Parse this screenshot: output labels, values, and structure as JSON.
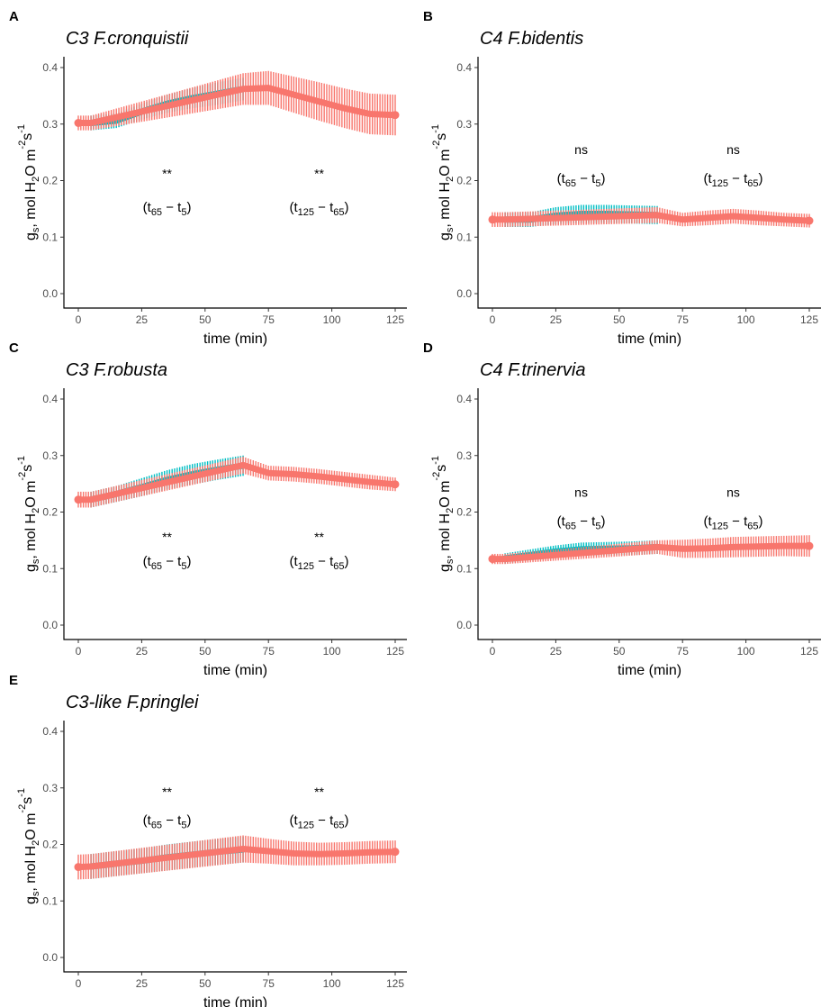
{
  "chart_data": [
    {
      "type": "line",
      "panel_label": "A",
      "title": "C3 F.cronquistii",
      "xlabel": "time (min)",
      "ylabel": "g_s, mol H2O m^-2 s^-1",
      "xlim": [
        0,
        125
      ],
      "ylim": [
        0,
        0.4
      ],
      "xticks": [
        "0",
        "25",
        "50",
        "75",
        "100",
        "125"
      ],
      "yticks": [
        "0.0",
        "0.1",
        "0.2",
        "0.3",
        "0.4"
      ],
      "colors": {
        "light": "#00BFC4",
        "dark": "#F8766D"
      },
      "series": [
        {
          "condition": "light",
          "x": [
            5,
            15,
            25,
            35,
            45,
            55,
            65
          ],
          "y": [
            0.302,
            0.306,
            0.322,
            0.336,
            0.346,
            0.354,
            0.362
          ],
          "err": [
            0.013,
            0.013,
            0.014,
            0.016,
            0.018,
            0.02,
            0.02
          ]
        },
        {
          "condition": "dark",
          "x": [
            0,
            5,
            65,
            75,
            85,
            95,
            105,
            115,
            125
          ],
          "y": [
            0.302,
            0.302,
            0.362,
            0.364,
            0.352,
            0.34,
            0.328,
            0.318,
            0.316
          ],
          "err": [
            0.013,
            0.013,
            0.028,
            0.03,
            0.032,
            0.034,
            0.035,
            0.036,
            0.036
          ]
        }
      ],
      "annotations": [
        {
          "sig": "**",
          "a": "65",
          "b": "5",
          "x": 35
        },
        {
          "sig": "**",
          "a": "125",
          "b": "65",
          "x": 95
        }
      ],
      "ann_y": {
        "sig": 0.205,
        "paren": 0.145
      }
    },
    {
      "type": "line",
      "panel_label": "B",
      "title": "C4 F.bidentis",
      "xlabel": "time (min)",
      "ylabel": "g_s, mol H2O m^-2 s^-1",
      "xlim": [
        0,
        125
      ],
      "ylim": [
        0,
        0.4
      ],
      "xticks": [
        "0",
        "25",
        "50",
        "75",
        "100",
        "125"
      ],
      "yticks": [
        "0.0",
        "0.1",
        "0.2",
        "0.3",
        "0.4"
      ],
      "colors": {
        "light": "#00BFC4",
        "dark": "#F8766D"
      },
      "series": [
        {
          "condition": "light",
          "x": [
            5,
            15,
            25,
            35,
            45,
            55,
            65
          ],
          "y": [
            0.131,
            0.131,
            0.138,
            0.141,
            0.141,
            0.14,
            0.139
          ],
          "err": [
            0.013,
            0.013,
            0.015,
            0.016,
            0.016,
            0.016,
            0.016
          ]
        },
        {
          "condition": "dark",
          "x": [
            0,
            5,
            65,
            75,
            85,
            95,
            105,
            115,
            125
          ],
          "y": [
            0.131,
            0.131,
            0.139,
            0.131,
            0.134,
            0.137,
            0.134,
            0.131,
            0.129
          ],
          "err": [
            0.013,
            0.013,
            0.014,
            0.012,
            0.013,
            0.013,
            0.013,
            0.012,
            0.012
          ]
        }
      ],
      "annotations": [
        {
          "sig": "ns",
          "a": "65",
          "b": "5",
          "x": 35
        },
        {
          "sig": "ns",
          "a": "125",
          "b": "65",
          "x": 95
        }
      ],
      "ann_y": {
        "sig": 0.247,
        "paren": 0.196
      }
    },
    {
      "type": "line",
      "panel_label": "C",
      "title": "C3 F.robusta",
      "xlabel": "time (min)",
      "ylabel": "g_s, mol H2O m^-2 s^-1",
      "xlim": [
        0,
        125
      ],
      "ylim": [
        0,
        0.4
      ],
      "xticks": [
        "0",
        "25",
        "50",
        "75",
        "100",
        "125"
      ],
      "yticks": [
        "0.0",
        "0.1",
        "0.2",
        "0.3",
        "0.4"
      ],
      "colors": {
        "light": "#00BFC4",
        "dark": "#F8766D"
      },
      "series": [
        {
          "condition": "light",
          "x": [
            5,
            15,
            25,
            35,
            45,
            55,
            65
          ],
          "y": [
            0.222,
            0.232,
            0.244,
            0.257,
            0.267,
            0.275,
            0.282
          ],
          "err": [
            0.014,
            0.014,
            0.016,
            0.017,
            0.018,
            0.018,
            0.018
          ]
        },
        {
          "condition": "dark",
          "x": [
            0,
            5,
            65,
            75,
            85,
            95,
            105,
            115,
            125
          ],
          "y": [
            0.222,
            0.222,
            0.283,
            0.269,
            0.267,
            0.263,
            0.258,
            0.253,
            0.249
          ],
          "err": [
            0.014,
            0.014,
            0.015,
            0.013,
            0.013,
            0.013,
            0.013,
            0.013,
            0.012
          ]
        }
      ],
      "annotations": [
        {
          "sig": "**",
          "a": "65",
          "b": "5",
          "x": 35
        },
        {
          "sig": "**",
          "a": "125",
          "b": "65",
          "x": 95
        }
      ],
      "ann_y": {
        "sig": 0.148,
        "paren": 0.105
      }
    },
    {
      "type": "line",
      "panel_label": "D",
      "title": "C4 F.trinervia",
      "xlabel": "time (min)",
      "ylabel": "g_s, mol H2O m^-2 s^-1",
      "xlim": [
        0,
        125
      ],
      "ylim": [
        0,
        0.4
      ],
      "xticks": [
        "0",
        "25",
        "50",
        "75",
        "100",
        "125"
      ],
      "yticks": [
        "0.0",
        "0.1",
        "0.2",
        "0.3",
        "0.4"
      ],
      "colors": {
        "light": "#00BFC4",
        "dark": "#F8766D"
      },
      "series": [
        {
          "condition": "light",
          "x": [
            5,
            15,
            25,
            35,
            45,
            55,
            65
          ],
          "y": [
            0.118,
            0.124,
            0.13,
            0.134,
            0.135,
            0.136,
            0.138
          ],
          "err": [
            0.009,
            0.01,
            0.011,
            0.012,
            0.012,
            0.012,
            0.012
          ]
        },
        {
          "condition": "dark",
          "x": [
            0,
            5,
            65,
            75,
            85,
            95,
            105,
            115,
            125
          ],
          "y": [
            0.117,
            0.117,
            0.138,
            0.135,
            0.136,
            0.138,
            0.139,
            0.14,
            0.14
          ],
          "err": [
            0.009,
            0.009,
            0.012,
            0.016,
            0.017,
            0.018,
            0.018,
            0.018,
            0.019
          ]
        }
      ],
      "annotations": [
        {
          "sig": "ns",
          "a": "65",
          "b": "5",
          "x": 35
        },
        {
          "sig": "ns",
          "a": "125",
          "b": "65",
          "x": 95
        }
      ],
      "ann_y": {
        "sig": 0.227,
        "paren": 0.176
      }
    },
    {
      "type": "line",
      "panel_label": "E",
      "title": "C3-like F.pringlei",
      "xlabel": "time (min)",
      "ylabel": "g_s, mol H2O m^-2 s^-1",
      "xlim": [
        0,
        125
      ],
      "ylim": [
        0,
        0.4
      ],
      "xticks": [
        "0",
        "25",
        "50",
        "75",
        "100",
        "125"
      ],
      "yticks": [
        "0.0",
        "0.1",
        "0.2",
        "0.3",
        "0.4"
      ],
      "colors": {
        "light": "#00BFC4",
        "dark": "#F8766D"
      },
      "series": [
        {
          "condition": "light",
          "x": [
            5,
            15,
            25,
            35,
            45,
            55,
            65
          ],
          "y": [
            0.161,
            0.166,
            0.171,
            0.177,
            0.182,
            0.187,
            0.191
          ],
          "err": [
            0.022,
            0.022,
            0.022,
            0.023,
            0.023,
            0.023,
            0.023
          ]
        },
        {
          "condition": "dark",
          "x": [
            0,
            5,
            65,
            75,
            85,
            95,
            105,
            115,
            125
          ],
          "y": [
            0.16,
            0.161,
            0.192,
            0.188,
            0.184,
            0.183,
            0.184,
            0.186,
            0.187
          ],
          "err": [
            0.022,
            0.022,
            0.024,
            0.022,
            0.021,
            0.02,
            0.02,
            0.02,
            0.02
          ]
        }
      ],
      "annotations": [
        {
          "sig": "**",
          "a": "65",
          "b": "5",
          "x": 35
        },
        {
          "sig": "**",
          "a": "125",
          "b": "65",
          "x": 95
        }
      ],
      "ann_y": {
        "sig": 0.285,
        "paren": 0.235
      }
    }
  ]
}
